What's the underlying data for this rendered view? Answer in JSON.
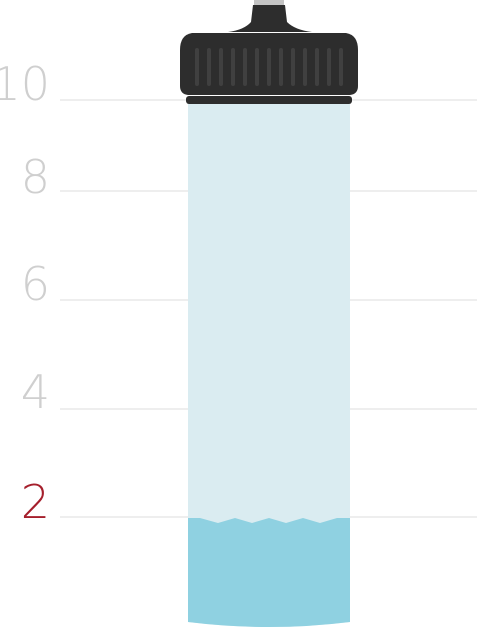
{
  "scale": {
    "labels": [
      "10",
      "8",
      "6",
      "4",
      "2"
    ],
    "values": [
      10,
      8,
      6,
      4,
      2
    ],
    "highlighted": "2"
  },
  "fill_level": 2,
  "colors": {
    "grid": "#dedede",
    "label": "#cfcfcf",
    "highlight_label": "#a51f2c",
    "bottle_body": "#daecf1",
    "water": "#8fd1e1",
    "cap": "#2d2d2d",
    "cap_ridges": "#3c3c3c",
    "nozzle_tip": "#c4c4c4"
  },
  "icons": {
    "bottle": "water-bottle-icon",
    "cap": "bottle-cap-icon"
  }
}
